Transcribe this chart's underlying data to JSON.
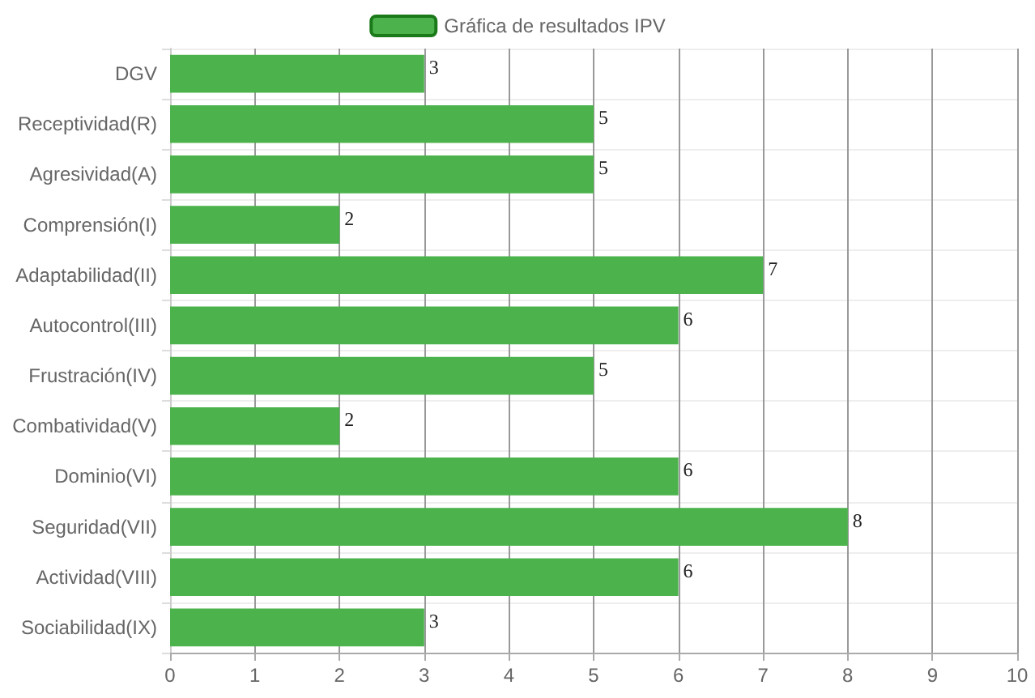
{
  "chart_data": {
    "type": "bar",
    "orientation": "horizontal",
    "categories": [
      "DGV",
      "Receptividad(R)",
      "Agresividad(A)",
      "Comprensión(I)",
      "Adaptabilidad(II)",
      "Autocontrol(III)",
      "Frustración(IV)",
      "Combatividad(V)",
      "Dominio(VI)",
      "Seguridad(VII)",
      "Actividad(VIII)",
      "Sociabilidad(IX)"
    ],
    "series": [
      {
        "name": "Gráfica de resultados IPV",
        "color": "#4cb34c",
        "values": [
          3,
          5,
          5,
          2,
          7,
          6,
          5,
          2,
          6,
          8,
          6,
          3
        ]
      }
    ],
    "xlim": [
      0,
      10
    ],
    "xticks": [
      0,
      1,
      2,
      3,
      4,
      5,
      6,
      7,
      8,
      9,
      10
    ],
    "grid": true,
    "legend": "top",
    "data_labels": true
  }
}
